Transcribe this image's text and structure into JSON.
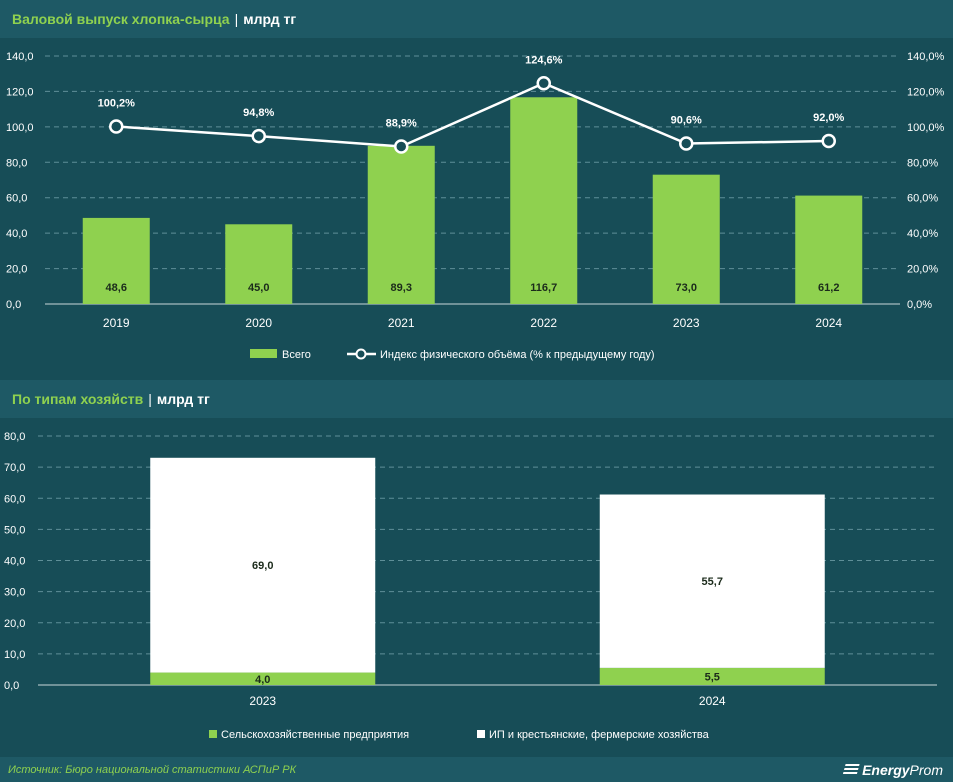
{
  "chart1": {
    "title": "Валовой выпуск хлопка-сырца",
    "unit": "млрд тг",
    "legend": {
      "bars": "Всего",
      "line": "Индекс физического объёма (% к предыдущему году)"
    },
    "left_ticks": [
      "0,0",
      "20,0",
      "40,0",
      "60,0",
      "80,0",
      "100,0",
      "120,0",
      "140,0"
    ],
    "right_ticks": [
      "0,0%",
      "20,0%",
      "40,0%",
      "60,0%",
      "80,0%",
      "100,0%",
      "120,0%",
      "140,0%"
    ],
    "bar_labels": [
      "48,6",
      "45,0",
      "89,3",
      "116,7",
      "73,0",
      "61,2"
    ],
    "line_labels": [
      "100,2%",
      "94,8%",
      "88,9%",
      "124,6%",
      "90,6%",
      "92,0%"
    ]
  },
  "chart2": {
    "title": "По типам хозяйств",
    "unit": "млрд тг",
    "left_ticks": [
      "0,0",
      "10,0",
      "20,0",
      "30,0",
      "40,0",
      "50,0",
      "60,0",
      "70,0",
      "80,0"
    ],
    "bottom_labels": [
      "4,0",
      "5,5"
    ],
    "top_labels": [
      "69,0",
      "55,7"
    ],
    "legend": {
      "green": "Сельскохозяйственные предприятия",
      "white": "ИП и крестьянские, фермерские хозяйства"
    }
  },
  "footer": {
    "source": "Источник: Бюро национальной статистики АСПиР РК",
    "logo_a": "Energy",
    "logo_b": "Prom"
  },
  "colors": {
    "background": "#174d57",
    "header": "#1e5965",
    "green": "#8fd14f",
    "white": "#ffffff"
  },
  "chart_data": [
    {
      "type": "bar",
      "title": "Валовой выпуск хлопка-сырца",
      "categories": [
        "2019",
        "2020",
        "2021",
        "2022",
        "2023",
        "2024"
      ],
      "series": [
        {
          "name": "Всего",
          "type": "bar",
          "axis": "left",
          "values": [
            48.6,
            45.0,
            89.3,
            116.7,
            73.0,
            61.2
          ]
        },
        {
          "name": "Индекс физического объёма (% к предыдущему году)",
          "type": "line",
          "axis": "right",
          "values": [
            100.2,
            94.8,
            88.9,
            124.6,
            90.6,
            92.0
          ]
        }
      ],
      "ylim": [
        0,
        140
      ],
      "y2lim": [
        0,
        140
      ],
      "grid": true,
      "legend": "bottom"
    },
    {
      "type": "bar",
      "stacked": true,
      "title": "По типам хозяйств",
      "categories": [
        "2023",
        "2024"
      ],
      "series": [
        {
          "name": "Сельскохозяйственные предприятия",
          "values": [
            4.0,
            5.5
          ]
        },
        {
          "name": "ИП и крестьянские, фермерские хозяйства",
          "values": [
            69.0,
            55.7
          ]
        }
      ],
      "ylim": [
        0,
        80
      ],
      "grid": true,
      "legend": "bottom"
    }
  ]
}
